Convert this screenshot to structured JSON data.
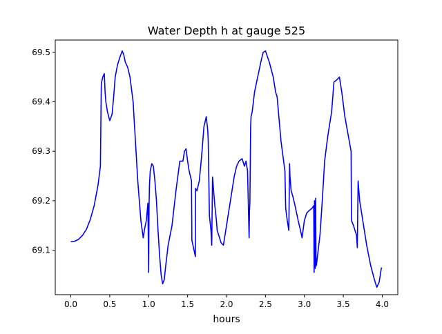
{
  "chart_data": {
    "type": "line",
    "title": "Water Depth h at gauge 525",
    "xlabel": "hours",
    "ylabel": "",
    "xlim": [
      -0.2,
      4.2
    ],
    "ylim": [
      69.01,
      69.525
    ],
    "grid": false,
    "line_color": "#0000ff",
    "x_ticks": [
      0.0,
      0.5,
      1.0,
      1.5,
      2.0,
      2.5,
      3.0,
      3.5,
      4.0
    ],
    "x_tick_labels": [
      "0.0",
      "0.5",
      "1.0",
      "1.5",
      "2.0",
      "2.5",
      "3.0",
      "3.5",
      "4.0"
    ],
    "y_ticks": [
      69.1,
      69.2,
      69.3,
      69.4,
      69.5
    ],
    "y_tick_labels": [
      "69.1",
      "69.2",
      "69.3",
      "69.4",
      "69.5"
    ],
    "series": [
      {
        "name": "",
        "x": [
          0.0,
          0.05,
          0.1,
          0.15,
          0.2,
          0.25,
          0.3,
          0.35,
          0.38,
          0.39,
          0.392,
          0.41,
          0.43,
          0.44,
          0.45,
          0.47,
          0.5,
          0.53,
          0.55,
          0.57,
          0.6,
          0.63,
          0.66,
          0.68,
          0.7,
          0.73,
          0.76,
          0.8,
          0.83,
          0.86,
          0.9,
          0.93,
          0.95,
          0.97,
          0.99,
          1.0,
          1.005,
          1.01,
          1.02,
          1.04,
          1.06,
          1.08,
          1.1,
          1.12,
          1.14,
          1.16,
          1.18,
          1.2,
          1.22,
          1.25,
          1.3,
          1.35,
          1.4,
          1.44,
          1.46,
          1.48,
          1.5,
          1.52,
          1.55,
          1.555,
          1.6,
          1.602,
          1.62,
          1.65,
          1.68,
          1.71,
          1.74,
          1.76,
          1.765,
          1.78,
          1.8,
          1.81,
          1.82,
          1.85,
          1.87,
          1.88,
          1.9,
          1.93,
          1.96,
          2.0,
          2.05,
          2.1,
          2.13,
          2.16,
          2.2,
          2.23,
          2.25,
          2.27,
          2.29,
          2.295,
          2.3,
          2.31,
          2.315,
          2.33,
          2.36,
          2.4,
          2.44,
          2.47,
          2.5,
          2.55,
          2.6,
          2.63,
          2.65,
          2.7,
          2.75,
          2.76,
          2.78,
          2.8,
          2.81,
          2.815,
          2.83,
          2.85,
          2.88,
          2.92,
          2.95,
          2.97,
          3.0,
          3.03,
          3.06,
          3.1,
          3.12,
          3.125,
          3.13,
          3.14,
          3.145,
          3.15,
          3.155,
          3.17,
          3.2,
          3.23,
          3.26,
          3.3,
          3.35,
          3.38,
          3.42,
          3.45,
          3.48,
          3.52,
          3.6,
          3.605,
          3.63,
          3.67,
          3.68,
          3.69,
          3.71,
          3.73,
          3.75,
          3.8,
          3.85,
          3.9,
          3.93,
          3.96,
          3.99
        ],
        "values": [
          69.117,
          69.118,
          69.122,
          69.13,
          69.142,
          69.162,
          69.19,
          69.232,
          69.27,
          69.415,
          69.437,
          69.45,
          69.457,
          69.42,
          69.4,
          69.38,
          69.362,
          69.375,
          69.41,
          69.45,
          69.475,
          69.49,
          69.503,
          69.495,
          69.48,
          69.47,
          69.45,
          69.4,
          69.32,
          69.24,
          69.16,
          69.125,
          69.145,
          69.16,
          69.195,
          69.055,
          69.19,
          69.23,
          69.26,
          69.275,
          69.27,
          69.24,
          69.2,
          69.14,
          69.09,
          69.05,
          69.032,
          69.04,
          69.07,
          69.11,
          69.15,
          69.22,
          69.28,
          69.28,
          69.3,
          69.305,
          69.28,
          69.26,
          69.24,
          69.12,
          69.087,
          69.225,
          69.22,
          69.24,
          69.29,
          69.35,
          69.37,
          69.34,
          69.32,
          69.17,
          69.14,
          69.11,
          69.248,
          69.19,
          69.16,
          69.14,
          69.13,
          69.115,
          69.11,
          69.15,
          69.2,
          69.25,
          69.27,
          69.28,
          69.285,
          69.27,
          69.28,
          69.26,
          69.125,
          69.18,
          69.195,
          69.35,
          69.37,
          69.38,
          69.42,
          69.45,
          69.48,
          69.5,
          69.503,
          69.48,
          69.45,
          69.42,
          69.41,
          69.32,
          69.26,
          69.185,
          69.16,
          69.14,
          69.275,
          69.25,
          69.22,
          69.21,
          69.19,
          69.16,
          69.14,
          69.125,
          69.16,
          69.175,
          69.18,
          69.185,
          69.19,
          69.055,
          69.2,
          69.063,
          69.205,
          69.068,
          69.07,
          69.09,
          69.13,
          69.2,
          69.28,
          69.33,
          69.38,
          69.44,
          69.445,
          69.45,
          69.42,
          69.37,
          69.3,
          69.16,
          69.15,
          69.13,
          69.105,
          69.24,
          69.2,
          69.18,
          69.16,
          69.11,
          69.07,
          69.04,
          69.025,
          69.035,
          69.065
        ]
      }
    ]
  }
}
